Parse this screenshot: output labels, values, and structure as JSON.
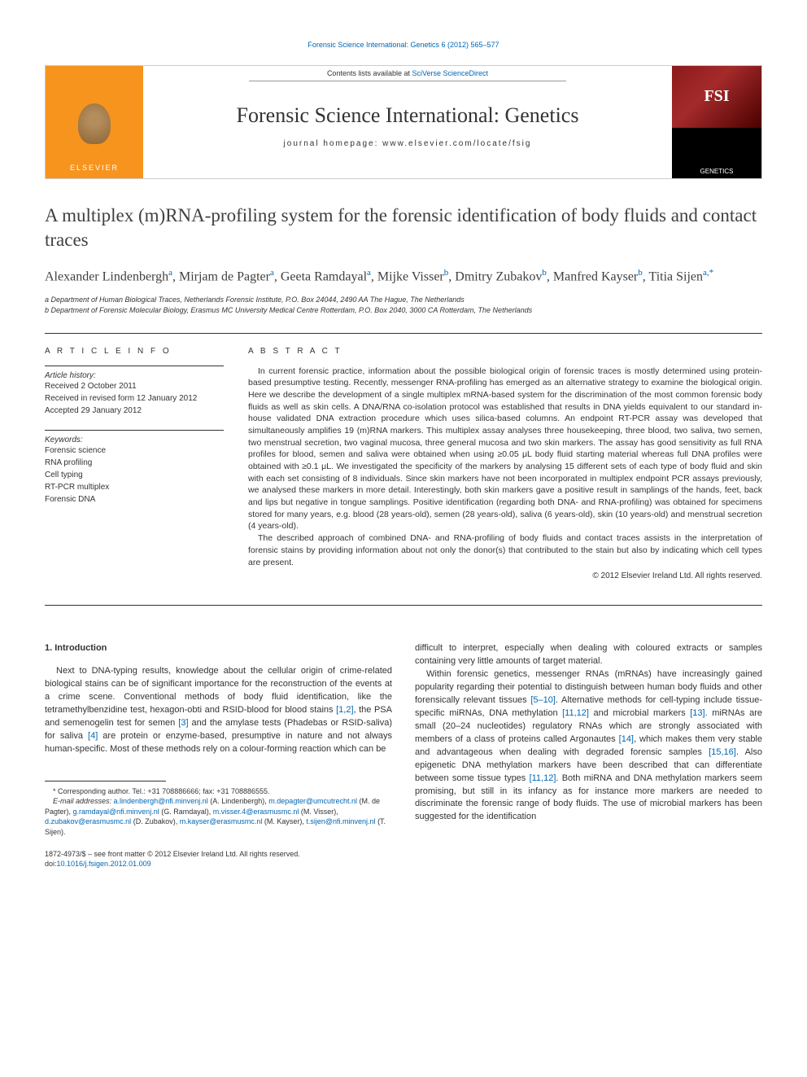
{
  "top_link": "Forensic Science International: Genetics 6 (2012) 565–577",
  "header": {
    "contents_prefix": "Contents lists available at ",
    "contents_link": "SciVerse ScienceDirect",
    "journal_title": "Forensic Science International: Genetics",
    "homepage": "journal homepage: www.elsevier.com/locate/fsig",
    "elsevier_label": "ELSEVIER",
    "fsi_label": "FSI",
    "fsi_sub": "GENETICS"
  },
  "article": {
    "title": "A multiplex (m)RNA-profiling system for the forensic identification of body fluids and contact traces",
    "authors_html": "Alexander Lindenbergh|a|, Mirjam de Pagter|a|, Geeta Ramdayal|a|, Mijke Visser|b|, Dmitry Zubakov|b|, Manfred Kayser|b|, Titia Sijen|a,*|",
    "affiliations": [
      "a Department of Human Biological Traces, Netherlands Forensic Institute, P.O. Box 24044, 2490 AA The Hague, The Netherlands",
      "b Department of Forensic Molecular Biology, Erasmus MC University Medical Centre Rotterdam, P.O. Box 2040, 3000 CA Rotterdam, The Netherlands"
    ]
  },
  "info": {
    "heading": "A R T I C L E   I N F O",
    "history_label": "Article history:",
    "history": [
      "Received 2 October 2011",
      "Received in revised form 12 January 2012",
      "Accepted 29 January 2012"
    ],
    "keywords_label": "Keywords:",
    "keywords": [
      "Forensic science",
      "RNA profiling",
      "Cell typing",
      "RT-PCR multiplex",
      "Forensic DNA"
    ]
  },
  "abstract": {
    "heading": "A B S T R A C T",
    "p1": "In current forensic practice, information about the possible biological origin of forensic traces is mostly determined using protein-based presumptive testing. Recently, messenger RNA-profiling has emerged as an alternative strategy to examine the biological origin. Here we describe the development of a single multiplex mRNA-based system for the discrimination of the most common forensic body fluids as well as skin cells. A DNA/RNA co-isolation protocol was established that results in DNA yields equivalent to our standard in-house validated DNA extraction procedure which uses silica-based columns. An endpoint RT-PCR assay was developed that simultaneously amplifies 19 (m)RNA markers. This multiplex assay analyses three housekeeping, three blood, two saliva, two semen, two menstrual secretion, two vaginal mucosa, three general mucosa and two skin markers. The assay has good sensitivity as full RNA profiles for blood, semen and saliva were obtained when using ≥0.05 μL body fluid starting material whereas full DNA profiles were obtained with ≥0.1 μL. We investigated the specificity of the markers by analysing 15 different sets of each type of body fluid and skin with each set consisting of 8 individuals. Since skin markers have not been incorporated in multiplex endpoint PCR assays previously, we analysed these markers in more detail. Interestingly, both skin markers gave a positive result in samplings of the hands, feet, back and lips but negative in tongue samplings. Positive identification (regarding both DNA- and RNA-profiling) was obtained for specimens stored for many years, e.g. blood (28 years-old), semen (28 years-old), saliva (6 years-old), skin (10 years-old) and menstrual secretion (4 years-old).",
    "p2": "The described approach of combined DNA- and RNA-profiling of body fluids and contact traces assists in the interpretation of forensic stains by providing information about not only the donor(s) that contributed to the stain but also by indicating which cell types are present.",
    "copyright": "© 2012 Elsevier Ireland Ltd. All rights reserved."
  },
  "body": {
    "section1_heading": "1. Introduction",
    "col1_p1_a": "Next to DNA-typing results, knowledge about the cellular origin of crime-related biological stains can be of significant importance for the reconstruction of the events at a crime scene. Conventional methods of body fluid identification, like the tetramethylbenzidine test, hexagon-obti and RSID-blood for blood stains ",
    "col1_p1_ref1": "[1,2]",
    "col1_p1_b": ", the PSA and semenogelin test for semen ",
    "col1_p1_ref2": "[3]",
    "col1_p1_c": " and the amylase tests (Phadebas or RSID-saliva) for saliva ",
    "col1_p1_ref3": "[4]",
    "col1_p1_d": " are protein or enzyme-based, presumptive in nature and not always human-specific. Most of these methods rely on a colour-forming reaction which can be",
    "col2_p1": "difficult to interpret, especially when dealing with coloured extracts or samples containing very little amounts of target material.",
    "col2_p2_a": "Within forensic genetics, messenger RNAs (mRNAs) have increasingly gained popularity regarding their potential to distinguish between human body fluids and other forensically relevant tissues ",
    "col2_p2_ref1": "[5–10]",
    "col2_p2_b": ". Alternative methods for cell-typing include tissue-specific miRNAs, DNA methylation ",
    "col2_p2_ref2": "[11,12]",
    "col2_p2_c": " and microbial markers ",
    "col2_p2_ref3": "[13]",
    "col2_p2_d": ". miRNAs are small (20–24 nucleotides) regulatory RNAs which are strongly associated with members of a class of proteins called Argonautes ",
    "col2_p2_ref4": "[14]",
    "col2_p2_e": ", which makes them very stable and advantageous when dealing with degraded forensic samples ",
    "col2_p2_ref5": "[15,16]",
    "col2_p2_f": ". Also epigenetic DNA methylation markers have been described that can differentiate between some tissue types ",
    "col2_p2_ref6": "[11,12]",
    "col2_p2_g": ". Both miRNA and DNA methylation markers seem promising, but still in its infancy as for instance more markers are needed to discriminate the forensic range of body fluids. The use of microbial markers has been suggested for the identification"
  },
  "footnote": {
    "corr": "* Corresponding author. Tel.: +31 708886666; fax: +31 708886555.",
    "email_label": "E-mail addresses: ",
    "emails": [
      {
        "addr": "a.lindenbergh@nfi.minvenj.nl",
        "name": " (A. Lindenbergh), "
      },
      {
        "addr": "m.depagter@umcutrecht.nl",
        "name": " (M. de Pagter), "
      },
      {
        "addr": "g.ramdayal@nfi.minvenj.nl",
        "name": " "
      },
      {
        "addr": "",
        "name": "(G. Ramdayal), "
      },
      {
        "addr": "m.visser.4@erasmusmc.nl",
        "name": " (M. Visser), "
      },
      {
        "addr": "d.zubakov@erasmusmc.nl",
        "name": " "
      },
      {
        "addr": "",
        "name": "(D. Zubakov), "
      },
      {
        "addr": "m.kayser@erasmusmc.nl",
        "name": " (M. Kayser), "
      },
      {
        "addr": "t.sijen@nfi.minvenj.nl",
        "name": " (T. Sijen)."
      }
    ]
  },
  "bottom": {
    "issn": "1872-4973/$ – see front matter © 2012 Elsevier Ireland Ltd. All rights reserved.",
    "doi_prefix": "doi:",
    "doi": "10.1016/j.fsigen.2012.01.009"
  },
  "colors": {
    "link": "#0066b3",
    "text": "#333333",
    "elsevier_orange": "#f7941d",
    "fsi_red": "#8b1a1a"
  }
}
